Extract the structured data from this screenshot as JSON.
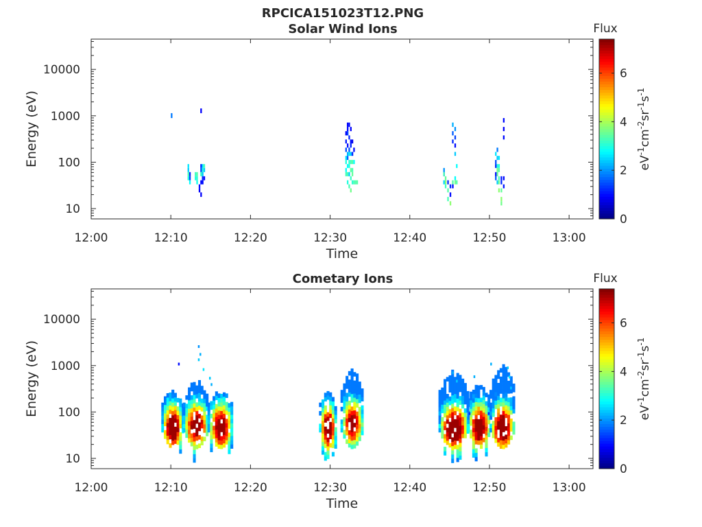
{
  "figure": {
    "title": "RPCICA151023T12.PNG",
    "colorbar": {
      "label": "Flux",
      "unit_text": "eV-1cm-2sr-1s-1",
      "unit_parts": [
        {
          "t": "eV",
          "sup": false
        },
        {
          "t": "-1",
          "sup": true
        },
        {
          "t": "cm",
          "sup": false
        },
        {
          "t": "-2",
          "sup": true
        },
        {
          "t": "sr",
          "sup": false
        },
        {
          "t": "-1",
          "sup": true
        },
        {
          "t": "s",
          "sup": false
        },
        {
          "t": "-1",
          "sup": true
        }
      ],
      "range": [
        0,
        7.4
      ],
      "ticks": [
        0,
        2,
        4,
        6
      ],
      "colormap": "jet"
    }
  },
  "chart_data": [
    {
      "type": "heatmap",
      "title": "Solar Wind Ions",
      "xlabel": "Time",
      "ylabel": "Energy (eV)",
      "xlim_min": [
        0,
        63
      ],
      "x_ticks_min": [
        0,
        10,
        20,
        30,
        40,
        50,
        60
      ],
      "x_tick_labels": [
        "12:00",
        "12:10",
        "12:20",
        "12:30",
        "12:40",
        "12:50",
        "13:00"
      ],
      "ylim": [
        6,
        45000
      ],
      "y_scale": "log",
      "y_ticks": [
        10,
        100,
        1000,
        10000
      ],
      "y_tick_labels": [
        "10",
        "100",
        "1000",
        "10000"
      ],
      "grid": false,
      "time_bins_min": [
        10.1,
        12.2,
        12.4,
        13.1,
        13.3,
        13.6,
        13.8,
        14.0,
        14.2,
        32.0,
        32.2,
        32.4,
        32.6,
        32.8,
        33.0,
        33.2,
        33.4,
        33.6,
        44.3,
        44.5,
        44.8,
        45.1,
        45.4,
        45.7,
        45.9,
        46.1,
        50.8,
        51.0,
        51.2,
        51.5,
        51.8,
        52.0,
        52.2
      ],
      "energy_bins_eV": [
        13,
        16,
        20,
        25,
        30,
        37,
        45,
        55,
        68,
        83,
        100,
        125,
        150,
        185,
        230,
        280,
        340,
        420,
        520,
        640,
        800,
        1000,
        1300
      ],
      "cells": [
        [
          10.1,
          1000,
          1.8
        ],
        [
          12.2,
          90,
          2.6
        ],
        [
          12.2,
          70,
          2.4
        ],
        [
          12.2,
          55,
          3.3
        ],
        [
          12.2,
          45,
          3.0
        ],
        [
          12.4,
          60,
          1.2
        ],
        [
          12.4,
          45,
          1.4
        ],
        [
          12.4,
          38,
          2.8
        ],
        [
          13.1,
          55,
          3.2
        ],
        [
          13.1,
          45,
          3.0
        ],
        [
          13.3,
          55,
          3.4
        ],
        [
          13.3,
          45,
          3.1
        ],
        [
          13.3,
          38,
          2.9
        ],
        [
          13.6,
          30,
          1.0
        ],
        [
          13.6,
          25,
          0.9
        ],
        [
          13.8,
          80,
          1.2
        ],
        [
          13.8,
          65,
          1.5
        ],
        [
          13.8,
          50,
          3.2
        ],
        [
          13.8,
          40,
          1.0
        ],
        [
          13.8,
          20,
          0.9
        ],
        [
          13.8,
          1300,
          0.9
        ],
        [
          14.0,
          90,
          2.6
        ],
        [
          14.0,
          70,
          3.0
        ],
        [
          14.0,
          55,
          2.4
        ],
        [
          14.0,
          42,
          1.2
        ],
        [
          14.0,
          35,
          1.0
        ],
        [
          14.2,
          88,
          3.3
        ],
        [
          14.2,
          68,
          2.4
        ],
        [
          14.2,
          45,
          1.0
        ],
        [
          32.0,
          420,
          0.9
        ],
        [
          32.0,
          280,
          1.1
        ],
        [
          32.0,
          180,
          1.5
        ],
        [
          32.0,
          130,
          2.6
        ],
        [
          32.0,
          95,
          3.0
        ],
        [
          32.0,
          75,
          2.8
        ],
        [
          32.0,
          60,
          3.3
        ],
        [
          32.2,
          700,
          0.9
        ],
        [
          32.2,
          540,
          1.0
        ],
        [
          32.2,
          400,
          1.4
        ],
        [
          32.2,
          250,
          1.0
        ],
        [
          32.2,
          160,
          2.2
        ],
        [
          32.2,
          120,
          1.6
        ],
        [
          32.2,
          85,
          2.8
        ],
        [
          32.2,
          60,
          3.3
        ],
        [
          32.2,
          40,
          3.0
        ],
        [
          32.4,
          600,
          1.0
        ],
        [
          32.4,
          350,
          1.2
        ],
        [
          32.4,
          200,
          1.5
        ],
        [
          32.4,
          150,
          2.6
        ],
        [
          32.4,
          110,
          3.1
        ],
        [
          32.4,
          80,
          3.0
        ],
        [
          32.4,
          55,
          2.4
        ],
        [
          32.4,
          30,
          3.3
        ],
        [
          32.6,
          480,
          0.9
        ],
        [
          32.6,
          300,
          1.0
        ],
        [
          32.6,
          220,
          1.2
        ],
        [
          32.6,
          160,
          2.4
        ],
        [
          32.6,
          110,
          3.3
        ],
        [
          32.6,
          70,
          3.5
        ],
        [
          32.6,
          45,
          3.2
        ],
        [
          32.6,
          25,
          3.6
        ],
        [
          32.8,
          260,
          0.8
        ],
        [
          32.8,
          160,
          1.2
        ],
        [
          32.8,
          95,
          3.4
        ],
        [
          32.8,
          75,
          3.3
        ],
        [
          32.8,
          55,
          3.5
        ],
        [
          32.8,
          40,
          3.1
        ],
        [
          33.0,
          200,
          1.0
        ],
        [
          33.0,
          110,
          2.8
        ],
        [
          33.0,
          40,
          3.3
        ],
        [
          33.2,
          40,
          3.4
        ],
        [
          33.4,
          40,
          3.4
        ],
        [
          44.3,
          75,
          2.0
        ],
        [
          44.3,
          60,
          1.0
        ],
        [
          44.3,
          50,
          3.3
        ],
        [
          44.3,
          40,
          2.5
        ],
        [
          44.5,
          45,
          3.5
        ],
        [
          44.5,
          35,
          3.8
        ],
        [
          44.5,
          28,
          3.2
        ],
        [
          44.8,
          38,
          1.2
        ],
        [
          44.8,
          25,
          3.4
        ],
        [
          44.8,
          16,
          3.3
        ],
        [
          45.1,
          28,
          1.2
        ],
        [
          45.1,
          20,
          1.0
        ],
        [
          45.1,
          13,
          3.8
        ],
        [
          45.4,
          620,
          2.2
        ],
        [
          45.4,
          420,
          1.6
        ],
        [
          45.4,
          280,
          1.2
        ],
        [
          45.4,
          40,
          3.4
        ],
        [
          45.4,
          28,
          1.0
        ],
        [
          45.7,
          560,
          2.0
        ],
        [
          45.7,
          320,
          1.4
        ],
        [
          45.7,
          220,
          1.0
        ],
        [
          45.7,
          150,
          2.4
        ],
        [
          45.7,
          45,
          2.8
        ],
        [
          45.7,
          35,
          3.6
        ],
        [
          45.9,
          80,
          2.8
        ],
        [
          45.9,
          40,
          3.4
        ],
        [
          50.8,
          150,
          2.6
        ],
        [
          50.8,
          110,
          1.5
        ],
        [
          50.8,
          80,
          1.2
        ],
        [
          50.8,
          55,
          1.0
        ],
        [
          50.8,
          45,
          1.6
        ],
        [
          51.0,
          180,
          1.8
        ],
        [
          51.0,
          130,
          2.4
        ],
        [
          51.0,
          90,
          3.0
        ],
        [
          51.0,
          70,
          3.6
        ],
        [
          51.0,
          55,
          3.5
        ],
        [
          51.0,
          40,
          2.4
        ],
        [
          51.2,
          120,
          2.6
        ],
        [
          51.2,
          90,
          3.0
        ],
        [
          51.2,
          65,
          3.4
        ],
        [
          51.2,
          45,
          3.3
        ],
        [
          51.2,
          35,
          3.6
        ],
        [
          51.2,
          25,
          3.8
        ],
        [
          51.5,
          45,
          1.1
        ],
        [
          51.5,
          35,
          1.2
        ],
        [
          51.5,
          25,
          3.5
        ],
        [
          51.5,
          16,
          3.8
        ],
        [
          51.5,
          13,
          3.6
        ],
        [
          51.8,
          850,
          1.0
        ],
        [
          51.8,
          480,
          0.9
        ],
        [
          51.8,
          350,
          1.0
        ],
        [
          51.8,
          45,
          1.0
        ],
        [
          51.8,
          30,
          1.1
        ]
      ]
    },
    {
      "type": "heatmap",
      "title": "Cometary Ions",
      "xlabel": "Time",
      "ylabel": "Energy (eV)",
      "xlim_min": [
        0,
        63
      ],
      "x_ticks_min": [
        0,
        10,
        20,
        30,
        40,
        50,
        60
      ],
      "x_tick_labels": [
        "12:00",
        "12:10",
        "12:20",
        "12:30",
        "12:40",
        "12:50",
        "13:00"
      ],
      "ylim": [
        6,
        45000
      ],
      "y_scale": "log",
      "y_ticks": [
        10,
        100,
        1000,
        10000
      ],
      "y_tick_labels": [
        "10",
        "100",
        "1000",
        "10000"
      ],
      "grid": false,
      "clusters": [
        {
          "t0": 8.8,
          "t1": 11.4,
          "e_top": 260,
          "peak": 6.6,
          "core": 42
        },
        {
          "t0": 11.5,
          "t1": 14.6,
          "e_top": 420,
          "peak": 6.0,
          "core": 45
        },
        {
          "t0": 14.6,
          "t1": 17.6,
          "e_top": 250,
          "peak": 6.2,
          "core": 42
        },
        {
          "t0": 28.6,
          "t1": 30.6,
          "e_top": 230,
          "peak": 6.6,
          "core": 40
        },
        {
          "t0": 31.3,
          "t1": 34.0,
          "e_top": 740,
          "peak": 5.8,
          "core": 50
        },
        {
          "t0": 43.6,
          "t1": 47.2,
          "e_top": 680,
          "peak": 6.8,
          "core": 40
        },
        {
          "t0": 47.2,
          "t1": 50.0,
          "e_top": 360,
          "peak": 6.4,
          "core": 42
        },
        {
          "t0": 50.0,
          "t1": 53.0,
          "e_top": 900,
          "peak": 6.6,
          "core": 42
        }
      ],
      "sparse_points": [
        [
          10.9,
          1050,
          1.0
        ],
        [
          13.4,
          2500,
          2.0
        ],
        [
          13.6,
          1700,
          2.2
        ],
        [
          13.4,
          1300,
          2.4
        ],
        [
          14.0,
          800,
          2.6
        ],
        [
          14.8,
          520,
          2.4
        ],
        [
          15.0,
          380,
          2.2
        ],
        [
          45.3,
          680,
          2.2
        ],
        [
          45.8,
          450,
          2.4
        ],
        [
          50.1,
          1050,
          2.2
        ],
        [
          52.2,
          870,
          2.4
        ],
        [
          52.4,
          550,
          2.6
        ],
        [
          52.6,
          320,
          2.4
        ],
        [
          48.0,
          560,
          2.2
        ],
        [
          47.4,
          90,
          1.2
        ],
        [
          49.8,
          90,
          1.2
        ]
      ]
    }
  ]
}
